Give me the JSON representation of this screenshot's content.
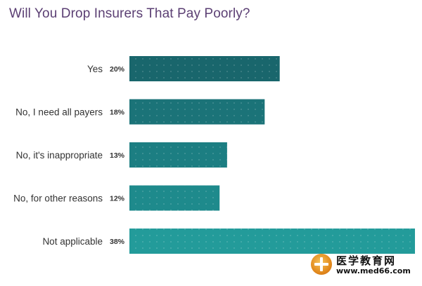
{
  "chart_data": {
    "type": "bar",
    "orientation": "horizontal",
    "title": "Will You Drop Insurers That Pay Poorly?",
    "categories": [
      "Yes",
      "No, I need all payers",
      "No, it's inappropriate",
      "No, for other reasons",
      "Not applicable"
    ],
    "values": [
      20,
      18,
      13,
      12,
      38
    ],
    "value_labels": [
      "20%",
      "18%",
      "13%",
      "12%",
      "38%"
    ],
    "unit": "%",
    "xlim": [
      0,
      38
    ],
    "grid": false,
    "legend": "none"
  },
  "colors": {
    "title": "#5b3f73",
    "label": "#333333",
    "bars": [
      "#19666c",
      "#1b7378",
      "#1c7e82",
      "#1e8a8c",
      "#239b9a"
    ],
    "dots": "#ffffff"
  },
  "watermark": {
    "text_cn": "医学教育网",
    "url": "www.med66.com"
  }
}
